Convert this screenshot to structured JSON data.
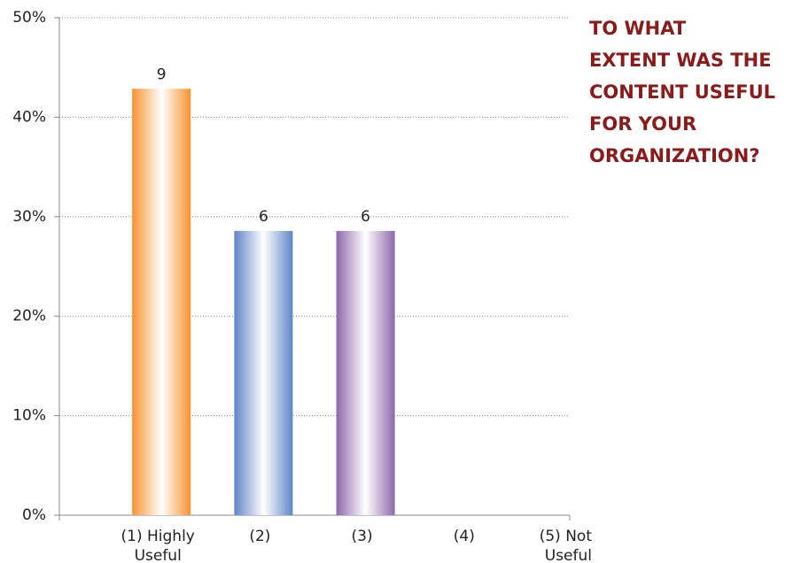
{
  "chart_data": {
    "type": "bar",
    "title": [
      "TO WHAT",
      "EXTENT WAS THE",
      "CONTENT USEFUL",
      "FOR YOUR",
      "ORGANIZATION?"
    ],
    "categories": [
      [
        "(1) Highly",
        "Useful"
      ],
      [
        "(2)"
      ],
      [
        "(3)"
      ],
      [
        "(4)"
      ],
      [
        "(5) Not",
        "Useful"
      ]
    ],
    "values": [
      42.86,
      28.57,
      28.57,
      0,
      0
    ],
    "counts": [
      9,
      6,
      6,
      null,
      null
    ],
    "colors": [
      "#f7922e",
      "#5f85c8",
      "#8e68ab",
      "#999999",
      "#999999"
    ],
    "ylim": [
      0,
      50
    ],
    "yticks": [
      {
        "value": 0,
        "label": "0%"
      },
      {
        "value": 10,
        "label": "10%"
      },
      {
        "value": 20,
        "label": "20%"
      },
      {
        "value": 30,
        "label": "30%"
      },
      {
        "value": 40,
        "label": "40%"
      },
      {
        "value": 50,
        "label": "50%"
      }
    ],
    "grid": true
  }
}
